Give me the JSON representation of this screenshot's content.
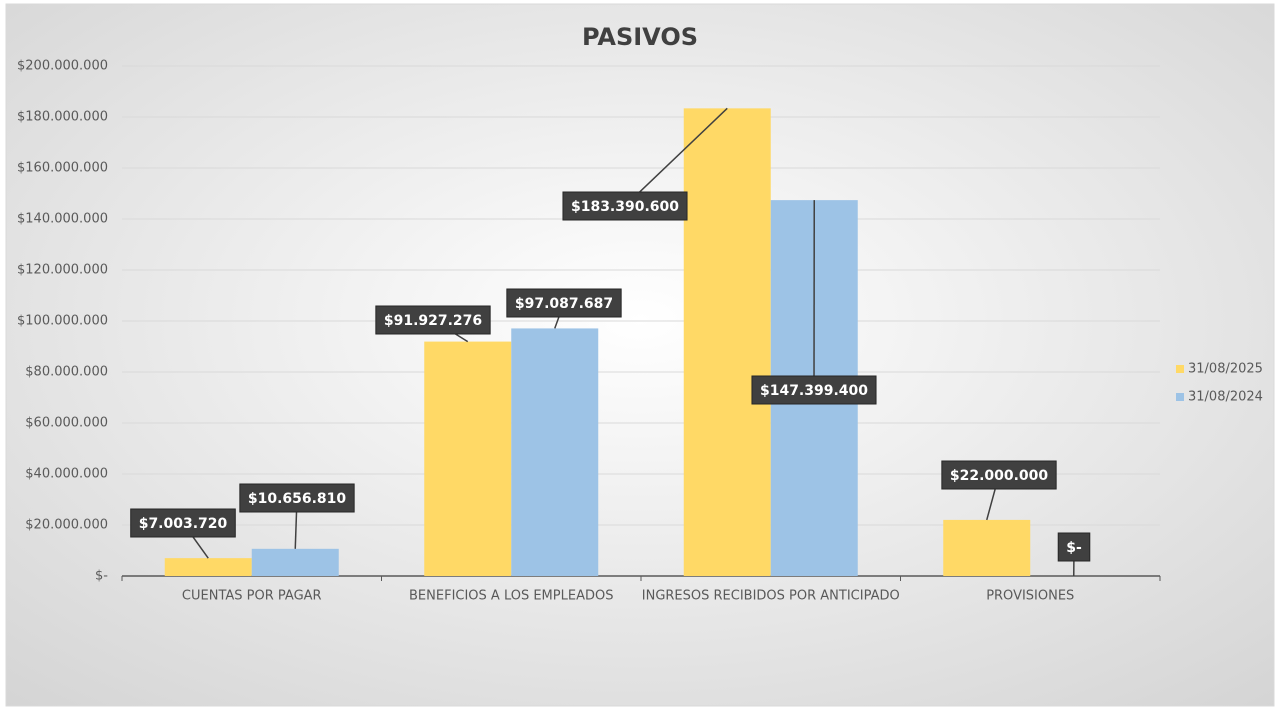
{
  "chart_data": {
    "type": "bar",
    "title": "PASIVOS",
    "categories": [
      "CUENTAS POR PAGAR",
      "BENEFICIOS A LOS EMPLEADOS",
      "INGRESOS RECIBIDOS POR ANTICIPADO",
      "PROVISIONES"
    ],
    "series": [
      {
        "name": "31/08/2025",
        "color": "#ffd966",
        "values": [
          7003720,
          91927276,
          183390600,
          22000000
        ],
        "value_labels": [
          "$7.003.720",
          "$91.927.276",
          "$183.390.600",
          "$22.000.000"
        ]
      },
      {
        "name": "31/08/2024",
        "color": "#9dc3e6",
        "values": [
          10656810,
          97087687,
          147399400,
          0
        ],
        "value_labels": [
          "$10.656.810",
          "$97.087.687",
          "$147.399.400",
          "$-"
        ]
      }
    ],
    "ylim": [
      0,
      200000000
    ],
    "yticks": [
      {
        "value": 0,
        "label": "$-"
      },
      {
        "value": 20000000,
        "label": "$20.000.000"
      },
      {
        "value": 40000000,
        "label": "$40.000.000"
      },
      {
        "value": 60000000,
        "label": "$60.000.000"
      },
      {
        "value": 80000000,
        "label": "$80.000.000"
      },
      {
        "value": 100000000,
        "label": "$100.000.000"
      },
      {
        "value": 120000000,
        "label": "$120.000.000"
      },
      {
        "value": 140000000,
        "label": "$140.000.000"
      },
      {
        "value": 160000000,
        "label": "$160.000.000"
      },
      {
        "value": 180000000,
        "label": "$180.000.000"
      },
      {
        "value": 200000000,
        "label": "$200.000.000"
      }
    ],
    "grid": true,
    "legend": "right"
  }
}
